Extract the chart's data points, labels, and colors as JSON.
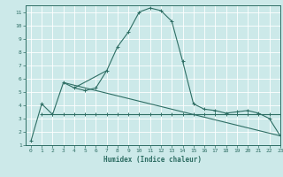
{
  "title": "",
  "xlabel": "Humidex (Indice chaleur)",
  "ylabel": "",
  "xlim": [
    -0.5,
    23
  ],
  "ylim": [
    1,
    11.5
  ],
  "yticks": [
    1,
    2,
    3,
    4,
    5,
    6,
    7,
    8,
    9,
    10,
    11
  ],
  "xticks": [
    0,
    1,
    2,
    3,
    4,
    5,
    6,
    7,
    8,
    9,
    10,
    11,
    12,
    13,
    14,
    15,
    16,
    17,
    18,
    19,
    20,
    21,
    22,
    23
  ],
  "bg_color": "#cce9e9",
  "line_color": "#2e6e64",
  "grid_color": "#ffffff",
  "line1_x": [
    0,
    1,
    2,
    3,
    4,
    5,
    6,
    7,
    8,
    9,
    10,
    11,
    12,
    13,
    14,
    15,
    16,
    17,
    18,
    19,
    20,
    21,
    22,
    23
  ],
  "line1_y": [
    1.3,
    4.1,
    3.3,
    5.7,
    5.3,
    5.1,
    5.3,
    6.6,
    8.4,
    9.5,
    11.0,
    11.3,
    11.1,
    10.3,
    7.3,
    4.1,
    3.7,
    3.6,
    3.4,
    3.5,
    3.6,
    3.4,
    3.0,
    1.7
  ],
  "line2_x": [
    1,
    2,
    3,
    4,
    5,
    6,
    7,
    8,
    9,
    10,
    11,
    12,
    13,
    14,
    15,
    16,
    17,
    18,
    19,
    20,
    21,
    22,
    23
  ],
  "line2_y": [
    3.3,
    3.3,
    3.3,
    3.3,
    3.3,
    3.3,
    3.3,
    3.3,
    3.3,
    3.3,
    3.3,
    3.3,
    3.3,
    3.3,
    3.3,
    3.3,
    3.3,
    3.3,
    3.3,
    3.3,
    3.3,
    3.3,
    3.3
  ],
  "line3_x": [
    3,
    23
  ],
  "line3_y": [
    5.7,
    1.7
  ],
  "line4_x": [
    4,
    7
  ],
  "line4_y": [
    5.3,
    6.6
  ]
}
